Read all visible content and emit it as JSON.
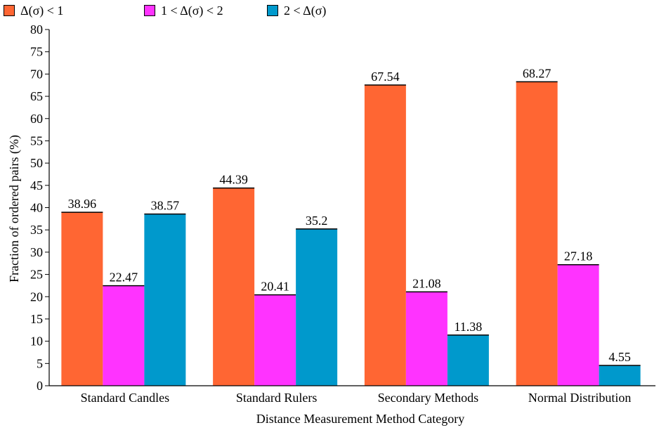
{
  "chart_data": {
    "type": "bar",
    "xlabel": "Distance Measurement Method Category",
    "ylabel": "Fraction of ordered pairs (%)",
    "ylim": [
      0,
      80
    ],
    "yticks": [
      0,
      5,
      10,
      15,
      20,
      25,
      30,
      35,
      40,
      45,
      50,
      55,
      60,
      65,
      70,
      75,
      80
    ],
    "grid": false,
    "legend_position": "top-left",
    "categories": [
      "Standard Candles",
      "Standard Rulers",
      "Secondary Methods",
      "Normal Distribution"
    ],
    "series": [
      {
        "name": "Δ(σ) < 1",
        "color": "#ff6633",
        "values": [
          38.96,
          44.39,
          67.54,
          68.27
        ],
        "labels": [
          "38.96",
          "44.39",
          "67.54",
          "68.27"
        ]
      },
      {
        "name": "1 < Δ(σ) < 2",
        "color": "#ff33ff",
        "values": [
          22.47,
          20.41,
          21.08,
          27.18
        ],
        "labels": [
          "22.47",
          "20.41",
          "21.08",
          "27.18"
        ]
      },
      {
        "name": "2 < Δ(σ)",
        "color": "#0099cc",
        "values": [
          38.57,
          35.2,
          11.38,
          4.55
        ],
        "labels": [
          "38.57",
          "35.2",
          "11.38",
          "4.55"
        ]
      }
    ]
  }
}
